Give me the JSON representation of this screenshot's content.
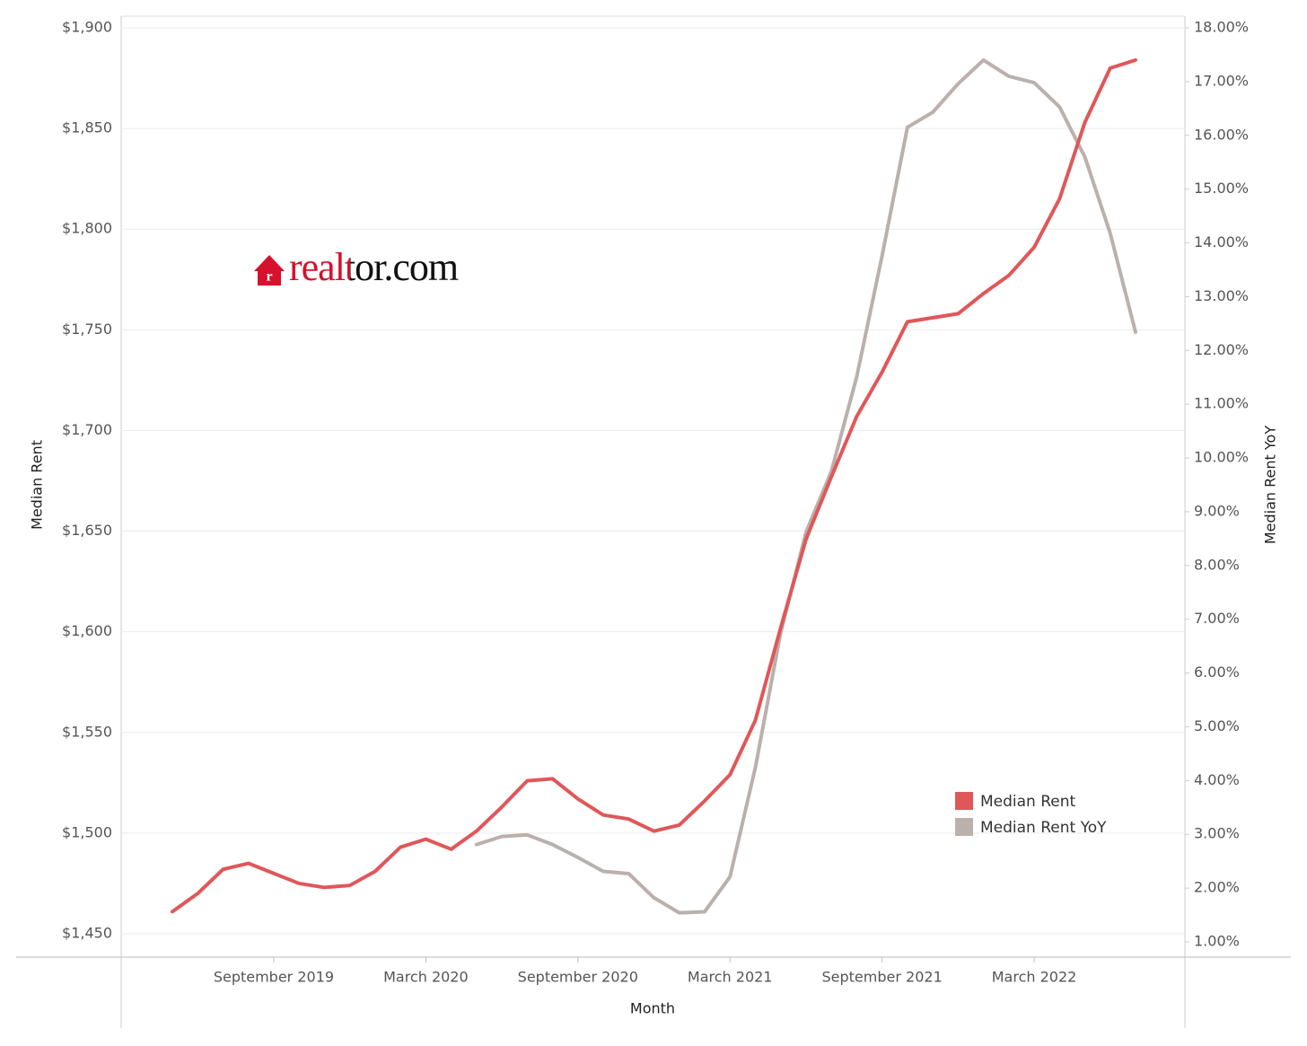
{
  "chart_data": {
    "type": "line",
    "x_label": "Month",
    "y_label": "Median Rent",
    "y2_label": "Median Rent YoY",
    "annotation": "realtor.com",
    "categories": [
      null,
      null,
      null,
      null,
      "September 2019",
      null,
      null,
      null,
      null,
      null,
      "March 2020",
      null,
      null,
      null,
      null,
      null,
      "September 2020",
      null,
      null,
      null,
      null,
      null,
      "March 2021",
      null,
      null,
      null,
      null,
      null,
      "September 2021",
      null,
      null,
      null,
      null,
      null,
      "March 2022",
      null,
      null,
      null,
      null
    ],
    "series": [
      {
        "name": "Median Rent",
        "color": "#e05759",
        "axis": "y",
        "values": [
          1461,
          1470,
          1482,
          1485,
          1480,
          1475,
          1473,
          1474,
          1481,
          1493,
          1497,
          1492,
          1501,
          1513,
          1526,
          1527,
          1517,
          1509,
          1507,
          1501,
          1504,
          1516,
          1529,
          1556,
          1602,
          1646,
          1677,
          1707,
          1729,
          1754,
          1756,
          1758,
          1768,
          1777,
          1791,
          1815,
          1853,
          1880,
          1884
        ]
      },
      {
        "name": "Median Rent YoY",
        "color": "#bab0ac",
        "axis": "y2",
        "values": [
          null,
          null,
          null,
          null,
          null,
          null,
          null,
          null,
          null,
          null,
          null,
          null,
          2.81,
          2.96,
          2.99,
          2.81,
          2.57,
          2.31,
          2.27,
          1.82,
          1.54,
          1.56,
          2.21,
          4.24,
          6.75,
          8.62,
          9.75,
          11.51,
          13.76,
          16.15,
          16.43,
          16.96,
          17.4,
          17.1,
          16.98,
          16.53,
          15.6,
          14.18,
          12.34
        ]
      }
    ],
    "ylim": [
      1450,
      1900
    ],
    "yticks": [
      {
        "value": 1450,
        "label": "$1,450"
      },
      {
        "value": 1500,
        "label": "$1,500"
      },
      {
        "value": 1550,
        "label": "$1,550"
      },
      {
        "value": 1600,
        "label": "$1,600"
      },
      {
        "value": 1650,
        "label": "$1,650"
      },
      {
        "value": 1700,
        "label": "$1,700"
      },
      {
        "value": 1750,
        "label": "$1,750"
      },
      {
        "value": 1800,
        "label": "$1,800"
      },
      {
        "value": 1850,
        "label": "$1,850"
      },
      {
        "value": 1900,
        "label": "$1,900"
      }
    ],
    "y2lim": [
      1,
      18
    ],
    "y2ticks": [
      {
        "value": 1,
        "label": "1.00%"
      },
      {
        "value": 2,
        "label": "2.00%"
      },
      {
        "value": 3,
        "label": "3.00%"
      },
      {
        "value": 4,
        "label": "4.00%"
      },
      {
        "value": 5,
        "label": "5.00%"
      },
      {
        "value": 6,
        "label": "6.00%"
      },
      {
        "value": 7,
        "label": "7.00%"
      },
      {
        "value": 8,
        "label": "8.00%"
      },
      {
        "value": 9,
        "label": "9.00%"
      },
      {
        "value": 10,
        "label": "10.00%"
      },
      {
        "value": 11,
        "label": "11.00%"
      },
      {
        "value": 12,
        "label": "12.00%"
      },
      {
        "value": 13,
        "label": "13.00%"
      },
      {
        "value": 14,
        "label": "14.00%"
      },
      {
        "value": 15,
        "label": "15.00%"
      },
      {
        "value": 16,
        "label": "16.00%"
      },
      {
        "value": 17,
        "label": "17.00%"
      },
      {
        "value": 18,
        "label": "18.00%"
      }
    ],
    "grid": true,
    "legend": "lower right"
  }
}
